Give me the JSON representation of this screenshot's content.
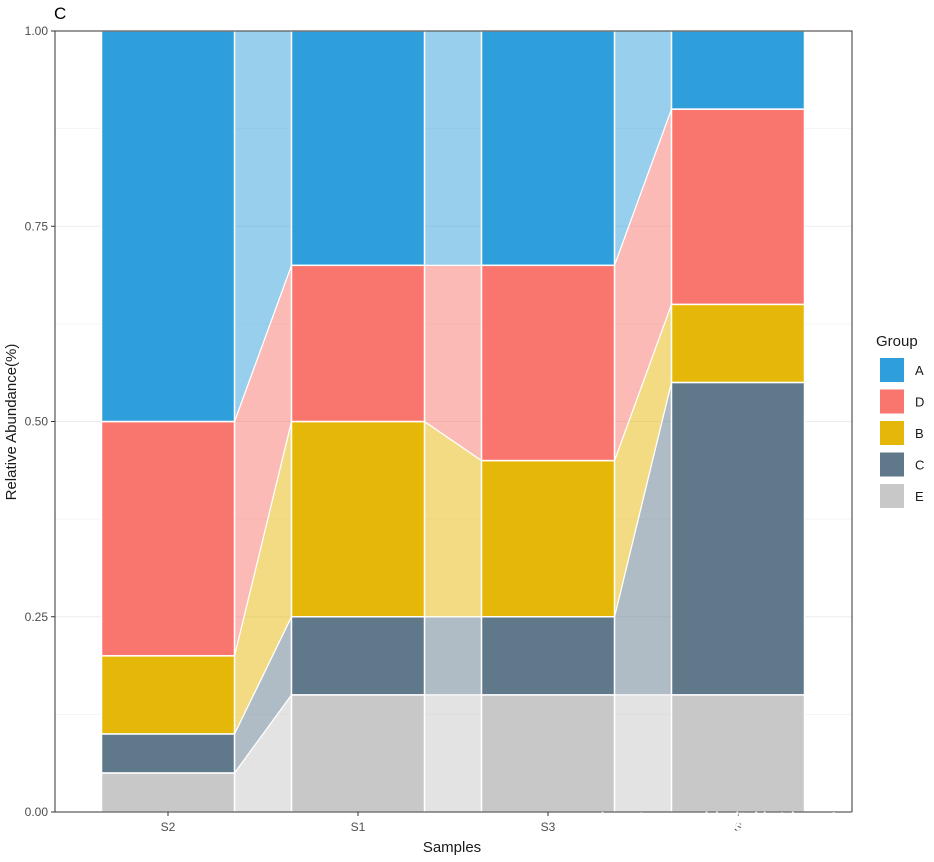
{
  "panel_tag": "C",
  "watermark": "知乎 @不掉发的科研小生",
  "chart_data": {
    "type": "bar",
    "subtype": "stacked-100-alluvial",
    "title": "",
    "xlabel": "Samples",
    "ylabel": "Relative Abundance(%)",
    "ylim": [
      0,
      1
    ],
    "yticks": [
      "0.00",
      "0.25",
      "0.50",
      "0.75",
      "1.00"
    ],
    "yticks_values": [
      0,
      0.25,
      0.5,
      0.75,
      1.0
    ],
    "categories": [
      "S2",
      "S1",
      "S3",
      "S4"
    ],
    "category_labels": [
      "S2",
      "S1",
      "S3",
      "S"
    ],
    "stack_order_bottom_to_top": [
      "E",
      "C",
      "B",
      "D",
      "A"
    ],
    "series": [
      {
        "name": "A",
        "values": [
          0.5,
          0.3,
          0.3,
          0.1
        ],
        "color": "#2f9fdc"
      },
      {
        "name": "D",
        "values": [
          0.3,
          0.2,
          0.25,
          0.25
        ],
        "color": "#f8766d"
      },
      {
        "name": "B",
        "values": [
          0.1,
          0.25,
          0.2,
          0.1
        ],
        "color": "#e5b708"
      },
      {
        "name": "C",
        "values": [
          0.05,
          0.1,
          0.1,
          0.4
        ],
        "color": "#5f798b"
      },
      {
        "name": "E",
        "values": [
          0.05,
          0.15,
          0.15,
          0.15
        ],
        "color": "#c8c8c8"
      }
    ],
    "legend": {
      "title": "Group",
      "position": "right",
      "order": [
        "A",
        "D",
        "B",
        "C",
        "E"
      ]
    },
    "grid": true,
    "theme": "bw"
  }
}
